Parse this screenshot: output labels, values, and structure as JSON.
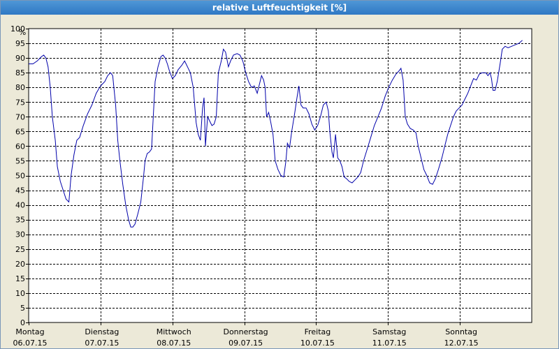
{
  "window": {
    "title": "relative Luftfeuchtigkeit [%]"
  },
  "colors": {
    "line": "#0000aa",
    "background": "#ece9d8",
    "plot_background": "#ffffff",
    "titlebar": "#3a86cc",
    "grid": "#000000"
  },
  "chart_data": {
    "type": "line",
    "title": "relative Luftfeuchtigkeit [%]",
    "ylabel": "%",
    "ylim": [
      0,
      100
    ],
    "ytick_step": 5,
    "xlim": [
      0,
      7
    ],
    "grid": true,
    "grid_style": "dashed",
    "xtick_labels": [
      {
        "day": "Montag",
        "date": "06.07.15"
      },
      {
        "day": "Dienstag",
        "date": "07.07.15"
      },
      {
        "day": "Mittwoch",
        "date": "08.07.15"
      },
      {
        "day": "Donnerstag",
        "date": "09.07.15"
      },
      {
        "day": "Freitag",
        "date": "10.07.15"
      },
      {
        "day": "Samstag",
        "date": "11.07.15"
      },
      {
        "day": "Sonntag",
        "date": "12.07.15"
      }
    ],
    "series": [
      {
        "points": [
          [
            0.0,
            88
          ],
          [
            0.06,
            88
          ],
          [
            0.12,
            89
          ],
          [
            0.18,
            90.5
          ],
          [
            0.21,
            91
          ],
          [
            0.24,
            90
          ],
          [
            0.27,
            87
          ],
          [
            0.3,
            80
          ],
          [
            0.33,
            70
          ],
          [
            0.37,
            62
          ],
          [
            0.4,
            53
          ],
          [
            0.44,
            48
          ],
          [
            0.48,
            45
          ],
          [
            0.52,
            42
          ],
          [
            0.56,
            41
          ],
          [
            0.59,
            50
          ],
          [
            0.63,
            57
          ],
          [
            0.67,
            62
          ],
          [
            0.71,
            63
          ],
          [
            0.76,
            67
          ],
          [
            0.82,
            71
          ],
          [
            0.88,
            74
          ],
          [
            0.94,
            78
          ],
          [
            1.0,
            80.5
          ],
          [
            1.06,
            82
          ],
          [
            1.1,
            84
          ],
          [
            1.14,
            85
          ],
          [
            1.17,
            84
          ],
          [
            1.21,
            74
          ],
          [
            1.24,
            62
          ],
          [
            1.27,
            55
          ],
          [
            1.31,
            47
          ],
          [
            1.35,
            40
          ],
          [
            1.39,
            35
          ],
          [
            1.42,
            32.5
          ],
          [
            1.45,
            32.5
          ],
          [
            1.48,
            33.5
          ],
          [
            1.52,
            37
          ],
          [
            1.56,
            41
          ],
          [
            1.6,
            50
          ],
          [
            1.62,
            55
          ],
          [
            1.65,
            57.5
          ],
          [
            1.68,
            58
          ],
          [
            1.71,
            59
          ],
          [
            1.76,
            82
          ],
          [
            1.8,
            87
          ],
          [
            1.84,
            90.5
          ],
          [
            1.87,
            91
          ],
          [
            1.9,
            90
          ],
          [
            1.93,
            88
          ],
          [
            1.96,
            85.5
          ],
          [
            2.0,
            83
          ],
          [
            2.04,
            84
          ],
          [
            2.08,
            86
          ],
          [
            2.13,
            87.5
          ],
          [
            2.17,
            89
          ],
          [
            2.21,
            87
          ],
          [
            2.25,
            85
          ],
          [
            2.29,
            80
          ],
          [
            2.31,
            74
          ],
          [
            2.33,
            68
          ],
          [
            2.36,
            64
          ],
          [
            2.39,
            62
          ],
          [
            2.42,
            73
          ],
          [
            2.44,
            76.5
          ],
          [
            2.46,
            60
          ],
          [
            2.49,
            70
          ],
          [
            2.52,
            68.5
          ],
          [
            2.55,
            67
          ],
          [
            2.58,
            67.5
          ],
          [
            2.61,
            70
          ],
          [
            2.64,
            85
          ],
          [
            2.68,
            89
          ],
          [
            2.71,
            93
          ],
          [
            2.74,
            92
          ],
          [
            2.78,
            87
          ],
          [
            2.81,
            89
          ],
          [
            2.85,
            91
          ],
          [
            2.9,
            91.5
          ],
          [
            2.94,
            91
          ],
          [
            2.98,
            89
          ],
          [
            3.02,
            85
          ],
          [
            3.06,
            82
          ],
          [
            3.1,
            80
          ],
          [
            3.14,
            80.5
          ],
          [
            3.18,
            78
          ],
          [
            3.21,
            81
          ],
          [
            3.24,
            84
          ],
          [
            3.27,
            82.5
          ],
          [
            3.29,
            80
          ],
          [
            3.31,
            70
          ],
          [
            3.34,
            71.5
          ],
          [
            3.37,
            68
          ],
          [
            3.4,
            64
          ],
          [
            3.43,
            55
          ],
          [
            3.47,
            52
          ],
          [
            3.51,
            50
          ],
          [
            3.55,
            49.5
          ],
          [
            3.58,
            55
          ],
          [
            3.6,
            61
          ],
          [
            3.63,
            59.5
          ],
          [
            3.66,
            65
          ],
          [
            3.7,
            71
          ],
          [
            3.73,
            76
          ],
          [
            3.76,
            80.5
          ],
          [
            3.79,
            74
          ],
          [
            3.82,
            73
          ],
          [
            3.86,
            73
          ],
          [
            3.9,
            71
          ],
          [
            3.94,
            67.5
          ],
          [
            3.98,
            65.5
          ],
          [
            4.02,
            67
          ],
          [
            4.06,
            70
          ],
          [
            4.1,
            74
          ],
          [
            4.14,
            75
          ],
          [
            4.17,
            72
          ],
          [
            4.19,
            65
          ],
          [
            4.22,
            58
          ],
          [
            4.24,
            56
          ],
          [
            4.27,
            64
          ],
          [
            4.3,
            56
          ],
          [
            4.33,
            55
          ],
          [
            4.36,
            53
          ],
          [
            4.39,
            49.5
          ],
          [
            4.42,
            49
          ],
          [
            4.46,
            48
          ],
          [
            4.5,
            47.5
          ],
          [
            4.54,
            48.5
          ],
          [
            4.58,
            49.5
          ],
          [
            4.62,
            51
          ],
          [
            4.66,
            55
          ],
          [
            4.71,
            59
          ],
          [
            4.76,
            63
          ],
          [
            4.81,
            67
          ],
          [
            4.86,
            70
          ],
          [
            4.91,
            73
          ],
          [
            4.96,
            77
          ],
          [
            5.01,
            80
          ],
          [
            5.06,
            82.5
          ],
          [
            5.11,
            84.5
          ],
          [
            5.15,
            85.5
          ],
          [
            5.18,
            86.5
          ],
          [
            5.21,
            82.5
          ],
          [
            5.24,
            70
          ],
          [
            5.27,
            67.5
          ],
          [
            5.31,
            66
          ],
          [
            5.35,
            65.5
          ],
          [
            5.39,
            64.5
          ],
          [
            5.42,
            60
          ],
          [
            5.46,
            56
          ],
          [
            5.5,
            52
          ],
          [
            5.54,
            50
          ],
          [
            5.58,
            47.5
          ],
          [
            5.62,
            47
          ],
          [
            5.66,
            49
          ],
          [
            5.7,
            52
          ],
          [
            5.75,
            56
          ],
          [
            5.79,
            60
          ],
          [
            5.83,
            64
          ],
          [
            5.87,
            67
          ],
          [
            5.91,
            70
          ],
          [
            5.95,
            72
          ],
          [
            5.99,
            73
          ],
          [
            6.03,
            74
          ],
          [
            6.07,
            76
          ],
          [
            6.11,
            78
          ],
          [
            6.15,
            80.5
          ],
          [
            6.19,
            83
          ],
          [
            6.23,
            82.5
          ],
          [
            6.27,
            84.5
          ],
          [
            6.31,
            85
          ],
          [
            6.36,
            85
          ],
          [
            6.39,
            84
          ],
          [
            6.42,
            85
          ],
          [
            6.44,
            83
          ],
          [
            6.46,
            79
          ],
          [
            6.49,
            79
          ],
          [
            6.52,
            82
          ],
          [
            6.56,
            88
          ],
          [
            6.59,
            93
          ],
          [
            6.63,
            94
          ],
          [
            6.67,
            93.5
          ],
          [
            6.72,
            94
          ],
          [
            6.77,
            94.5
          ],
          [
            6.82,
            95
          ],
          [
            6.87,
            96
          ]
        ]
      }
    ]
  }
}
